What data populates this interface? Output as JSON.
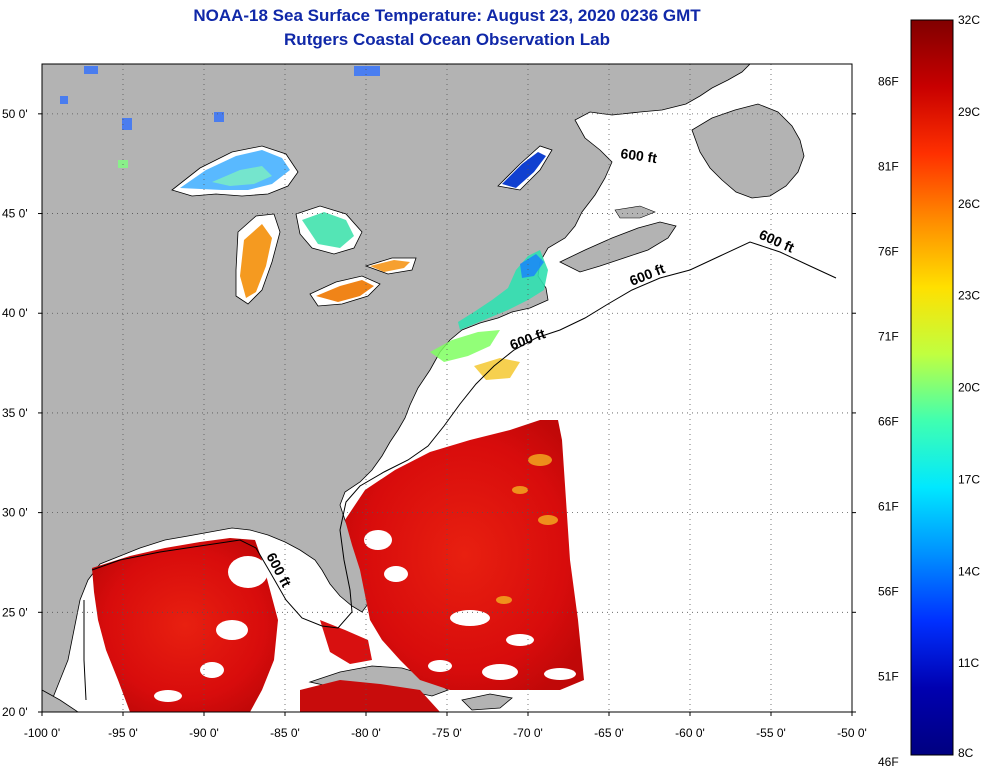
{
  "title": {
    "line1": "NOAA-18 Sea Surface Temperature:  August 23, 2020 0236 GMT",
    "line2": "Rutgers Coastal Ocean Observation Lab"
  },
  "map": {
    "lon_range": [
      -100,
      -50
    ],
    "lat_range": [
      20,
      52.5
    ],
    "grid": "dotted",
    "lon_labels": [
      "-100 0'",
      "-95 0'",
      "-90 0'",
      "-85 0'",
      "-80 0'",
      "-75 0'",
      "-70 0'",
      "-65 0'",
      "-60 0'",
      "-55 0'",
      "-50 0'"
    ],
    "lat_labels": [
      "20 0'",
      "25 0'",
      "30 0'",
      "35 0'",
      "40 0'",
      "45 0'",
      "50 0'"
    ],
    "contour_label": "600 ft",
    "colors": {
      "land": "#b3b3b3",
      "no_data": "#ffffff",
      "warm": "#e0140f"
    }
  },
  "colorbar": {
    "c_labels": [
      "32C",
      "29C",
      "26C",
      "23C",
      "20C",
      "17C",
      "14C",
      "11C",
      "8C"
    ],
    "f_labels": [
      "86F",
      "81F",
      "76F",
      "71F",
      "66F",
      "61F",
      "56F",
      "51F",
      "46F"
    ],
    "colors": [
      "#800000",
      "#c80000",
      "#ff3000",
      "#ff8c00",
      "#ffe000",
      "#c0ff40",
      "#40ffb0",
      "#00e8ff",
      "#0090ff",
      "#0030ff",
      "#0000b0",
      "#000080"
    ]
  }
}
